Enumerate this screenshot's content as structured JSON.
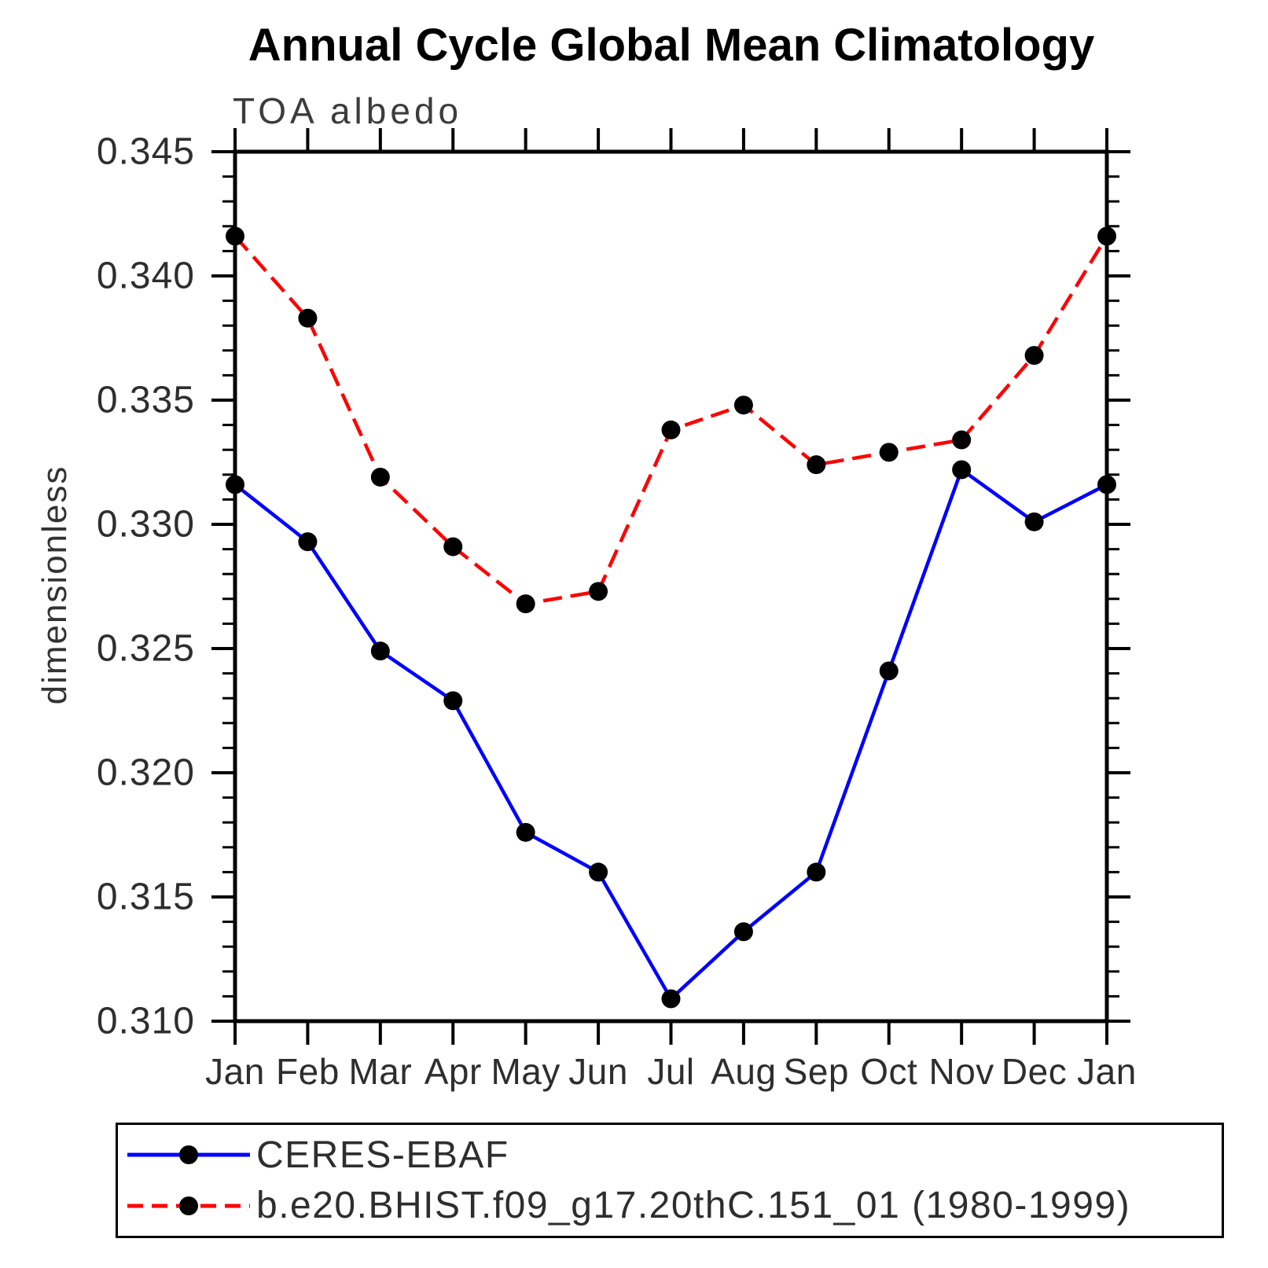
{
  "header": {
    "title": "Annual Cycle Global Mean Climatology"
  },
  "plot": {
    "subtitle": "TOA albedo",
    "ylabel": "dimensionless"
  },
  "colors": {
    "axis": "#000000",
    "marker": "#000000",
    "series_blue": "#0000ff",
    "series_red": "#ff0000",
    "background": "#ffffff"
  },
  "chart_data": {
    "type": "line",
    "title": "Annual Cycle Global Mean Climatology",
    "subtitle": "TOA albedo",
    "xlabel": "",
    "ylabel": "dimensionless",
    "categories": [
      "Jan",
      "Feb",
      "Mar",
      "Apr",
      "May",
      "Jun",
      "Jul",
      "Aug",
      "Sep",
      "Oct",
      "Nov",
      "Dec",
      "Jan"
    ],
    "series": [
      {
        "name": "CERES-EBAF",
        "color": "#0000ff",
        "line_style": "solid",
        "marker": "circle",
        "marker_color": "#000000",
        "values": [
          0.3316,
          0.3293,
          0.3249,
          0.3229,
          0.3176,
          0.316,
          0.3109,
          0.3136,
          0.316,
          0.3241,
          0.3322,
          0.3301,
          0.3316
        ]
      },
      {
        "name": "b.e20.BHIST.f09_g17.20thC.151_01 (1980-1999)",
        "color": "#ff0000",
        "line_style": "dashed",
        "marker": "circle",
        "marker_color": "#000000",
        "values": [
          0.3416,
          0.3383,
          0.3319,
          0.3291,
          0.3268,
          0.3273,
          0.3338,
          0.3348,
          0.3324,
          0.3329,
          0.3334,
          0.3368,
          0.3416
        ]
      }
    ],
    "ylim": [
      0.31,
      0.345
    ],
    "ytick_step": 0.005,
    "yminor_step": 0.001,
    "ytick_labels": [
      "0.310",
      "0.315",
      "0.320",
      "0.325",
      "0.330",
      "0.335",
      "0.340",
      "0.345"
    ],
    "grid": false,
    "legend_position": "bottom"
  }
}
